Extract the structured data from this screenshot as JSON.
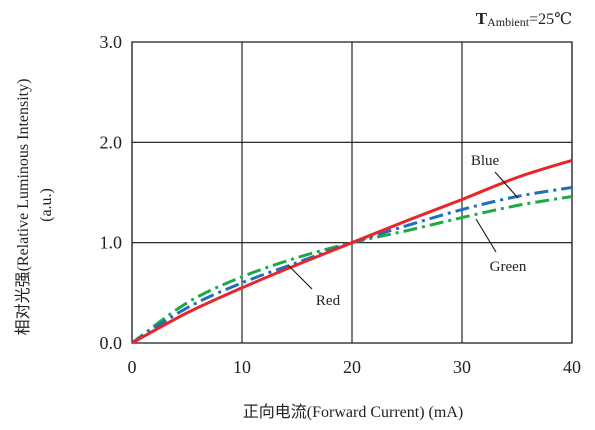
{
  "annotation": {
    "prefix": "T",
    "sub": "Ambient",
    "suffix": "=25℃"
  },
  "chart_data": {
    "type": "line",
    "xlabel": "正向电流(Forward Current) (mA)",
    "ylabel_line1": "相对光强(Relative Luminous Intensity)",
    "ylabel_line2": "(a.u.)",
    "xlim": [
      0,
      40
    ],
    "ylim": [
      0,
      3
    ],
    "x_ticks": [
      "0",
      "10",
      "20",
      "30",
      "40"
    ],
    "y_ticks": [
      "0.0",
      "1.0",
      "2.0",
      "3.0"
    ],
    "grid": true,
    "series": [
      {
        "name": "Red",
        "color": "#e8262a",
        "dash": "solid",
        "x": [
          0,
          5,
          10,
          15,
          20,
          25,
          30,
          35,
          40
        ],
        "y": [
          0,
          0.3,
          0.55,
          0.78,
          1.0,
          1.22,
          1.43,
          1.65,
          1.82
        ]
      },
      {
        "name": "Blue",
        "color": "#1f6fc0",
        "dash": "dashdot",
        "x": [
          0,
          5,
          10,
          15,
          20,
          25,
          30,
          35,
          40
        ],
        "y": [
          0,
          0.35,
          0.6,
          0.8,
          1.0,
          1.17,
          1.33,
          1.46,
          1.55
        ]
      },
      {
        "name": "Green",
        "color": "#1fa84a",
        "dash": "dashdot",
        "x": [
          0,
          5,
          10,
          15,
          20,
          25,
          30,
          35,
          40
        ],
        "y": [
          0,
          0.4,
          0.66,
          0.85,
          1.0,
          1.12,
          1.25,
          1.37,
          1.46
        ]
      }
    ]
  }
}
